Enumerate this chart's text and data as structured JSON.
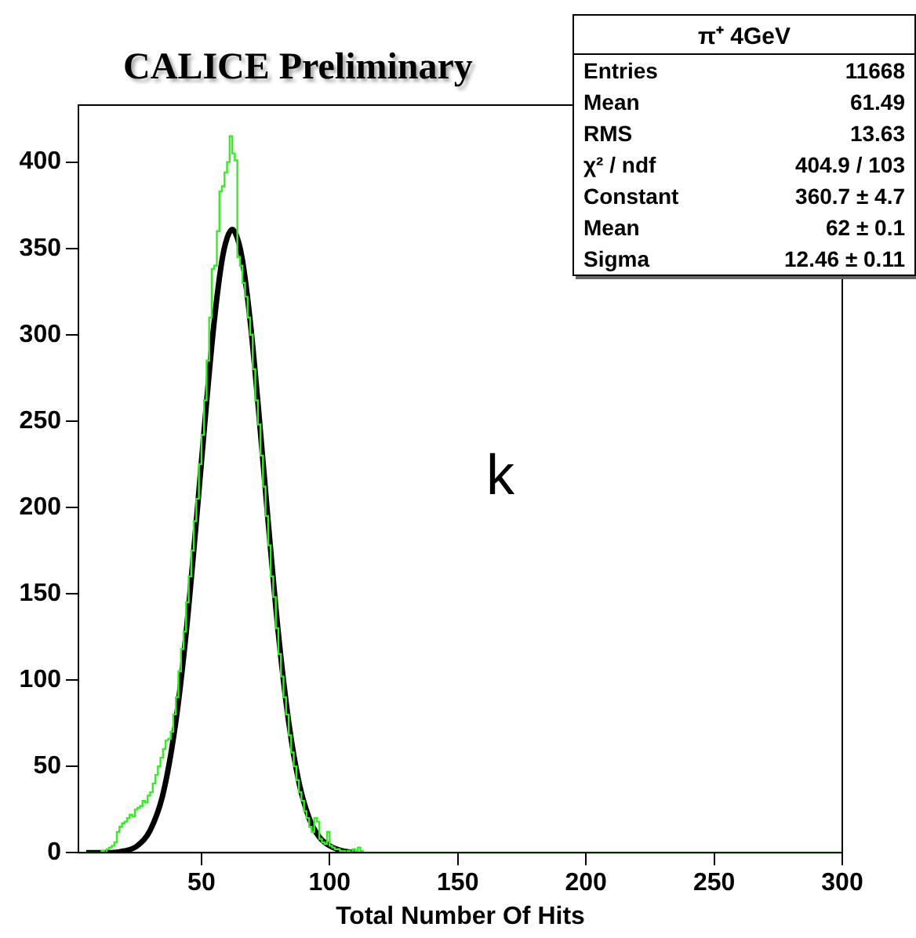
{
  "chart_data": {
    "type": "histogram",
    "title": "CALICE Preliminary",
    "xlabel": "Total Number Of Hits",
    "bins": [
      2,
      3,
      4,
      5,
      6,
      7,
      8,
      9,
      10,
      11,
      12,
      13,
      14,
      15,
      16,
      17,
      18,
      19,
      20,
      21,
      22,
      23,
      24,
      25,
      26,
      27,
      28,
      29,
      30,
      31,
      32,
      33,
      34,
      35,
      36,
      37,
      38,
      39,
      40,
      41,
      42,
      43,
      44,
      45,
      46,
      47,
      48,
      49,
      50,
      51,
      52,
      53,
      54,
      55,
      56,
      57,
      58,
      59,
      60,
      61,
      62,
      63,
      64,
      65,
      66,
      67,
      68,
      69,
      70,
      71,
      72,
      73,
      74,
      75,
      76,
      77,
      78,
      79,
      80,
      81,
      82,
      83,
      84,
      85,
      86,
      87,
      88,
      89,
      90,
      91,
      92,
      93,
      94,
      95,
      96,
      97,
      98,
      99,
      100,
      101,
      102,
      103,
      104,
      105,
      106,
      107,
      108,
      109,
      110,
      111,
      112,
      113,
      114,
      115,
      116,
      117,
      118,
      119,
      120,
      121,
      122,
      123,
      124,
      125,
      126,
      127,
      128,
      129,
      130,
      131,
      132,
      133,
      134,
      135,
      136,
      137,
      138,
      139,
      140,
      141,
      142,
      143,
      144,
      145,
      146,
      147,
      148,
      149,
      150,
      151,
      152,
      153,
      154,
      155,
      156,
      157,
      158,
      159,
      160,
      161,
      162,
      163,
      164,
      165,
      166,
      167,
      168,
      169,
      170,
      171,
      172,
      173,
      174,
      175,
      176,
      177,
      178,
      179,
      180,
      181,
      182,
      183,
      184,
      185,
      186,
      187,
      188,
      189,
      190,
      191,
      192,
      193,
      194,
      195,
      196,
      197,
      198,
      199,
      200,
      201,
      202,
      203,
      204,
      205,
      206,
      207,
      208,
      209,
      210,
      211,
      212,
      213,
      214,
      215,
      216,
      217,
      218,
      219,
      220,
      221,
      222,
      223,
      224,
      225,
      226,
      227,
      228,
      229,
      230,
      231,
      232,
      233,
      234,
      235,
      236,
      237,
      238,
      239,
      240,
      241,
      242,
      243,
      244,
      245,
      246,
      247,
      248,
      249,
      250,
      251,
      252,
      253,
      254,
      255,
      256,
      257,
      258,
      259,
      260,
      261,
      262,
      263,
      264,
      265,
      266,
      267,
      268,
      269,
      270,
      271,
      272,
      273,
      274,
      275,
      276,
      277,
      278,
      279,
      280,
      281,
      282,
      283,
      284,
      285,
      286,
      287,
      288,
      289,
      290,
      291,
      292,
      293,
      294,
      295,
      296,
      297,
      298,
      299,
      300
    ],
    "values": [
      0,
      0,
      0,
      0,
      0,
      0,
      0,
      0,
      0,
      0,
      1,
      0,
      2,
      3,
      4,
      6,
      12,
      15,
      17,
      18,
      20,
      22,
      21,
      25,
      26,
      27,
      30,
      29,
      33,
      35,
      40,
      45,
      50,
      55,
      60,
      65,
      66,
      70,
      80,
      90,
      105,
      118,
      128,
      145,
      160,
      175,
      192,
      205,
      225,
      242,
      262,
      285,
      310,
      338,
      340,
      360,
      383,
      386,
      394,
      400,
      415,
      405,
      401,
      345,
      340,
      330,
      322,
      310,
      300,
      280,
      262,
      248,
      230,
      212,
      195,
      178,
      160,
      148,
      130,
      115,
      102,
      90,
      80,
      68,
      58,
      50,
      42,
      35,
      30,
      24,
      20,
      15,
      12,
      20,
      18,
      8,
      6,
      5,
      12,
      4,
      3,
      2,
      2,
      1,
      1,
      0,
      1,
      0,
      2,
      1,
      3,
      1,
      0,
      0,
      0,
      0,
      0,
      0,
      0,
      0,
      0,
      0,
      0,
      0,
      0,
      0,
      0,
      0,
      0,
      0,
      0,
      0,
      0,
      0,
      0,
      0,
      0,
      0,
      0,
      0,
      0,
      0,
      0,
      0,
      0,
      0,
      0,
      0,
      0,
      0,
      0,
      0,
      0,
      0,
      0,
      0,
      0,
      0,
      0,
      0,
      0,
      0,
      0,
      0,
      0,
      0,
      0,
      0,
      0,
      0,
      0,
      0,
      0,
      0,
      0,
      0,
      0,
      0,
      0,
      0,
      0,
      0,
      0,
      0,
      0,
      0,
      0,
      0,
      0,
      0,
      0,
      0,
      0,
      0,
      0,
      0,
      0,
      0,
      0,
      0,
      0,
      0,
      0,
      0,
      0,
      0,
      0,
      0,
      0,
      0,
      0,
      0,
      0,
      0,
      0,
      0,
      0,
      0,
      0,
      0,
      0,
      0,
      0,
      0,
      0,
      0,
      0,
      0,
      0,
      0,
      0,
      0,
      0,
      0,
      0,
      0,
      0,
      0,
      0,
      0,
      0,
      0,
      0,
      0,
      0,
      0,
      0,
      0,
      0,
      0,
      0,
      0,
      0,
      0,
      0,
      0,
      0,
      0,
      0,
      0,
      0,
      0,
      0,
      0,
      0,
      0,
      0,
      0,
      0,
      0,
      0,
      0,
      0,
      0,
      0,
      0,
      0,
      0,
      0,
      0,
      0,
      0,
      0,
      0,
      0,
      0,
      0,
      0,
      0,
      0,
      0,
      0,
      0,
      0,
      0,
      0,
      0,
      0
    ],
    "color": "#33ee22",
    "series": [
      {
        "type": "line",
        "color": "#000000",
        "x": [
          5,
          15,
          20,
          25,
          30,
          35,
          40,
          44,
          48,
          52,
          55,
          58,
          60,
          62,
          64,
          66,
          69,
          72,
          76,
          80,
          84,
          88,
          92,
          96,
          100,
          105,
          110
        ],
        "values": [
          0,
          0,
          1,
          4,
          13,
          34,
          76,
          127,
          192,
          261,
          308,
          343,
          356,
          361,
          356,
          343,
          308,
          261,
          192,
          127,
          76,
          41,
          20,
          9,
          4,
          1,
          0
        ]
      }
    ],
    "xlim": [
      2,
      300
    ],
    "xticks": [
      50,
      100,
      150,
      200,
      250,
      300
    ],
    "ylim": [
      0,
      433
    ],
    "yticks": [
      0,
      50,
      100,
      150,
      200,
      250,
      300,
      350,
      400
    ],
    "grid": false,
    "legend": false,
    "annotations": [
      "π⁺ 4GeV",
      "Entries",
      "11668",
      "Mean",
      "61.49",
      "RMS",
      "13.63",
      "χ² / ndf",
      "404.9 / 103",
      "Constant",
      "360.7 ± 4.7",
      "Mean",
      "62 ± 0.1",
      "Sigma",
      "12.46 ± 0.11",
      "k"
    ]
  }
}
